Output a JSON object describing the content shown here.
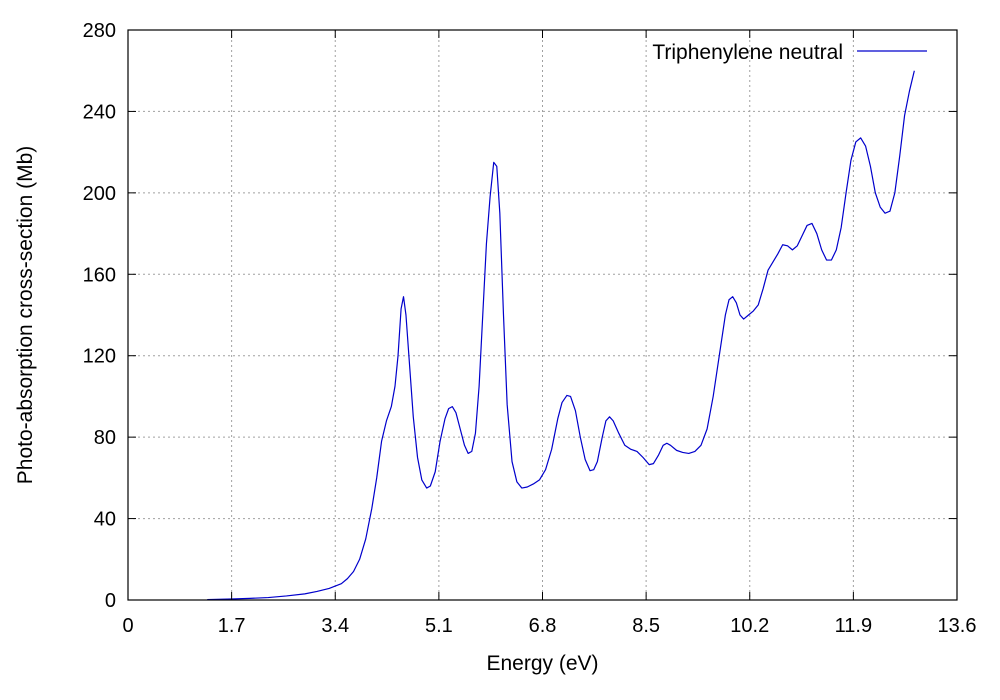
{
  "chart_data": {
    "type": "line",
    "title": "",
    "xlabel": "Energy (eV)",
    "ylabel": "Photo-absorption cross-section (Mb)",
    "xlim": [
      0,
      13.6
    ],
    "ylim": [
      0,
      280
    ],
    "x_ticks": [
      "0",
      "1.7",
      "3.4",
      "5.1",
      "6.8",
      "8.5",
      "10.2",
      "11.9",
      "13.6"
    ],
    "x_tick_values": [
      0,
      1.7,
      3.4,
      5.1,
      6.8,
      8.5,
      10.2,
      11.9,
      13.6
    ],
    "y_ticks": [
      "0",
      "40",
      "80",
      "120",
      "160",
      "200",
      "240",
      "280"
    ],
    "y_tick_values": [
      0,
      40,
      80,
      120,
      160,
      200,
      240,
      280
    ],
    "grid": true,
    "legend_position": "top-right",
    "series": [
      {
        "name": "Triphenylene neutral",
        "color": "#0000cc",
        "points": [
          [
            1.3,
            0.2
          ],
          [
            1.7,
            0.5
          ],
          [
            2.0,
            0.8
          ],
          [
            2.3,
            1.2
          ],
          [
            2.6,
            2.0
          ],
          [
            2.9,
            3.0
          ],
          [
            3.1,
            4.2
          ],
          [
            3.3,
            5.7
          ],
          [
            3.5,
            8.0
          ],
          [
            3.6,
            10.5
          ],
          [
            3.7,
            14
          ],
          [
            3.8,
            20
          ],
          [
            3.9,
            30
          ],
          [
            4.0,
            45
          ],
          [
            4.08,
            60
          ],
          [
            4.16,
            78
          ],
          [
            4.24,
            88
          ],
          [
            4.32,
            95
          ],
          [
            4.38,
            105
          ],
          [
            4.43,
            120
          ],
          [
            4.48,
            143
          ],
          [
            4.52,
            149
          ],
          [
            4.56,
            140
          ],
          [
            4.62,
            115
          ],
          [
            4.68,
            90
          ],
          [
            4.75,
            70
          ],
          [
            4.82,
            59
          ],
          [
            4.9,
            55
          ],
          [
            4.96,
            56
          ],
          [
            5.04,
            63
          ],
          [
            5.12,
            78
          ],
          [
            5.2,
            89
          ],
          [
            5.26,
            94
          ],
          [
            5.32,
            95
          ],
          [
            5.38,
            92
          ],
          [
            5.45,
            84
          ],
          [
            5.52,
            76
          ],
          [
            5.58,
            72
          ],
          [
            5.64,
            73
          ],
          [
            5.7,
            82
          ],
          [
            5.76,
            105
          ],
          [
            5.82,
            140
          ],
          [
            5.88,
            175
          ],
          [
            5.94,
            198
          ],
          [
            6.0,
            215
          ],
          [
            6.05,
            213
          ],
          [
            6.1,
            190
          ],
          [
            6.16,
            140
          ],
          [
            6.22,
            96
          ],
          [
            6.3,
            68
          ],
          [
            6.38,
            58
          ],
          [
            6.46,
            55
          ],
          [
            6.55,
            55.5
          ],
          [
            6.65,
            57
          ],
          [
            6.75,
            59
          ],
          [
            6.85,
            64
          ],
          [
            6.95,
            74
          ],
          [
            7.05,
            89
          ],
          [
            7.12,
            97
          ],
          [
            7.2,
            100.5
          ],
          [
            7.26,
            100
          ],
          [
            7.34,
            93
          ],
          [
            7.42,
            80
          ],
          [
            7.5,
            69
          ],
          [
            7.58,
            63.5
          ],
          [
            7.64,
            64
          ],
          [
            7.7,
            68
          ],
          [
            7.78,
            80
          ],
          [
            7.84,
            88
          ],
          [
            7.9,
            90
          ],
          [
            7.96,
            88
          ],
          [
            8.05,
            82
          ],
          [
            8.15,
            76
          ],
          [
            8.25,
            74
          ],
          [
            8.35,
            73
          ],
          [
            8.45,
            70
          ],
          [
            8.55,
            66.5
          ],
          [
            8.62,
            67
          ],
          [
            8.7,
            71
          ],
          [
            8.78,
            76
          ],
          [
            8.84,
            77
          ],
          [
            8.9,
            76
          ],
          [
            9.0,
            73.5
          ],
          [
            9.1,
            72.5
          ],
          [
            9.2,
            72
          ],
          [
            9.3,
            73
          ],
          [
            9.4,
            76
          ],
          [
            9.5,
            84
          ],
          [
            9.6,
            100
          ],
          [
            9.7,
            120
          ],
          [
            9.8,
            140
          ],
          [
            9.86,
            147.5
          ],
          [
            9.92,
            149
          ],
          [
            9.98,
            146
          ],
          [
            10.04,
            140
          ],
          [
            10.1,
            138
          ],
          [
            10.18,
            140
          ],
          [
            10.26,
            142
          ],
          [
            10.34,
            145
          ],
          [
            10.42,
            153
          ],
          [
            10.5,
            162
          ],
          [
            10.58,
            166
          ],
          [
            10.66,
            170
          ],
          [
            10.74,
            174.5
          ],
          [
            10.82,
            174
          ],
          [
            10.9,
            172
          ],
          [
            10.98,
            174
          ],
          [
            11.06,
            179
          ],
          [
            11.14,
            184
          ],
          [
            11.22,
            185
          ],
          [
            11.3,
            180
          ],
          [
            11.38,
            172
          ],
          [
            11.46,
            167
          ],
          [
            11.54,
            167
          ],
          [
            11.62,
            172
          ],
          [
            11.7,
            183
          ],
          [
            11.78,
            200
          ],
          [
            11.86,
            216
          ],
          [
            11.94,
            225
          ],
          [
            12.02,
            227
          ],
          [
            12.1,
            223
          ],
          [
            12.18,
            213
          ],
          [
            12.26,
            200
          ],
          [
            12.34,
            193
          ],
          [
            12.42,
            190
          ],
          [
            12.5,
            191
          ],
          [
            12.58,
            200
          ],
          [
            12.66,
            218
          ],
          [
            12.74,
            238
          ],
          [
            12.82,
            250
          ],
          [
            12.9,
            260
          ]
        ]
      }
    ]
  }
}
